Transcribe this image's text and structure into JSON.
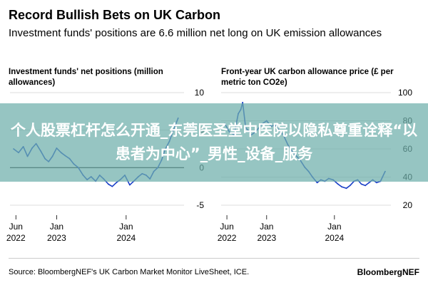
{
  "title": "Record Bullish Bets on UK Carbon",
  "subtitle": "Investment funds' positions are 6.6 million net long on UK emission allowances",
  "overlay_text": "个人股票杠杆怎么开通_东莞医圣堂中医院以隐私尊重诠释“以患者为中心”_男性_设备_服务",
  "source": "Source: BloombergNEF's UK Carbon Market Monitor LiveSheet, ICE.",
  "brand": "BloombergNEF",
  "colors": {
    "line": "#1a3fc7",
    "zero_line": "#000000",
    "grid": "#d0d0d0",
    "text": "#000000",
    "banner": "#6eafaa"
  },
  "chart_data": [
    {
      "type": "line",
      "title": "Investment funds' net positions (million allowances)",
      "ylim": [
        -5,
        10
      ],
      "yticks": [
        "10",
        "5",
        "0",
        "-5"
      ],
      "xlim": [
        "2022-05-01",
        "2024-10-31"
      ],
      "xticks": [
        {
          "date": "2022-06-01",
          "line1": "Jun",
          "line2": "2022"
        },
        {
          "date": "2023-01-01",
          "line1": "Jan",
          "line2": "2023"
        },
        {
          "date": "2024-01-01",
          "line1": "Jan",
          "line2": "2024"
        }
      ],
      "grid": true,
      "series": [
        {
          "x": [
            "2022-05-20",
            "2022-06-15",
            "2022-07-10",
            "2022-08-01",
            "2022-08-25",
            "2022-09-15",
            "2022-10-10",
            "2022-11-01",
            "2022-11-20",
            "2022-12-10",
            "2023-01-01",
            "2023-01-25",
            "2023-02-15",
            "2023-03-10",
            "2023-04-01",
            "2023-04-25",
            "2023-05-20",
            "2023-06-10",
            "2023-07-01",
            "2023-07-25",
            "2023-08-15",
            "2023-09-05",
            "2023-09-30",
            "2023-10-20",
            "2023-11-10",
            "2023-12-01",
            "2023-12-25",
            "2024-01-20",
            "2024-02-10",
            "2024-03-05",
            "2024-03-25",
            "2024-04-15",
            "2024-05-05",
            "2024-05-25",
            "2024-06-15",
            "2024-07-05",
            "2024-07-25",
            "2024-08-15",
            "2024-09-05",
            "2024-09-30"
          ],
          "y": [
            2.5,
            2.0,
            2.8,
            1.5,
            2.6,
            3.2,
            2.2,
            1.2,
            0.8,
            1.5,
            2.6,
            2.0,
            1.6,
            1.2,
            0.5,
            0.0,
            -1.0,
            -1.6,
            -1.2,
            -1.8,
            -1.0,
            -1.5,
            -2.2,
            -2.5,
            -2.0,
            -1.6,
            -1.0,
            -2.3,
            -1.8,
            -1.2,
            -0.8,
            -1.0,
            -1.5,
            -0.5,
            0.0,
            1.0,
            2.5,
            3.5,
            5.0,
            6.6
          ]
        }
      ]
    },
    {
      "type": "line",
      "title": "Front-year UK carbon allowance price (£ per metric ton CO2e)",
      "ylim": [
        20,
        100
      ],
      "yticks": [
        "100",
        "80",
        "60",
        "40",
        "20"
      ],
      "xlim": [
        "2022-05-01",
        "2024-10-31"
      ],
      "xticks": [
        {
          "date": "2022-06-01",
          "line1": "Jun",
          "line2": "2022"
        },
        {
          "date": "2023-01-01",
          "line1": "Jan",
          "line2": "2023"
        },
        {
          "date": "2024-01-01",
          "line1": "Jan",
          "line2": "2024"
        }
      ],
      "grid": true,
      "series": [
        {
          "x": [
            "2022-05-20",
            "2022-06-15",
            "2022-07-10",
            "2022-08-01",
            "2022-08-15",
            "2022-08-25",
            "2022-09-10",
            "2022-09-25",
            "2022-10-10",
            "2022-11-01",
            "2022-11-20",
            "2022-12-10",
            "2023-01-01",
            "2023-01-25",
            "2023-02-15",
            "2023-03-10",
            "2023-04-01",
            "2023-04-25",
            "2023-05-20",
            "2023-06-10",
            "2023-07-01",
            "2023-07-25",
            "2023-08-15",
            "2023-09-05",
            "2023-09-30",
            "2023-10-20",
            "2023-11-10",
            "2023-12-01",
            "2023-12-25",
            "2024-01-20",
            "2024-02-10",
            "2024-03-05",
            "2024-03-25",
            "2024-04-15",
            "2024-05-05",
            "2024-05-25",
            "2024-06-15",
            "2024-07-05",
            "2024-07-25",
            "2024-08-15",
            "2024-09-05",
            "2024-09-30"
          ],
          "y": [
            78,
            72,
            70,
            85,
            88,
            93,
            75,
            73,
            70,
            72,
            75,
            78,
            80,
            76,
            77,
            73,
            70,
            63,
            58,
            55,
            52,
            47,
            44,
            40,
            36,
            38,
            37,
            39,
            38,
            35,
            33,
            32,
            34,
            37,
            38,
            35,
            34,
            36,
            38,
            36,
            37,
            44
          ]
        }
      ]
    }
  ]
}
